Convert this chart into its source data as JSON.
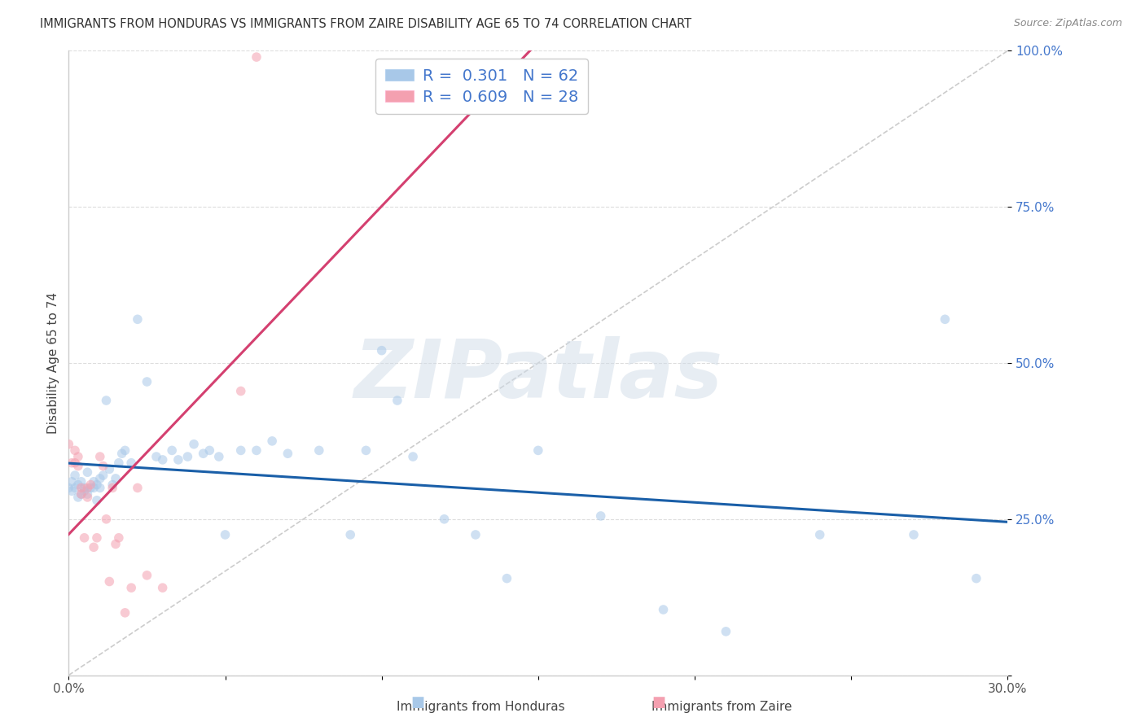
{
  "title": "IMMIGRANTS FROM HONDURAS VS IMMIGRANTS FROM ZAIRE DISABILITY AGE 65 TO 74 CORRELATION CHART",
  "source": "Source: ZipAtlas.com",
  "ylabel": "Disability Age 65 to 74",
  "xlim": [
    0.0,
    0.3
  ],
  "ylim": [
    0.0,
    1.0
  ],
  "xticks": [
    0.0,
    0.05,
    0.1,
    0.15,
    0.2,
    0.25,
    0.3
  ],
  "xtick_labels": [
    "0.0%",
    "",
    "",
    "",
    "",
    "",
    "30.0%"
  ],
  "yticks": [
    0.0,
    0.25,
    0.5,
    0.75,
    1.0
  ],
  "ytick_labels": [
    "",
    "25.0%",
    "50.0%",
    "75.0%",
    "100.0%"
  ],
  "honduras_R": 0.301,
  "honduras_N": 62,
  "zaire_R": 0.609,
  "zaire_N": 28,
  "honduras_color": "#a8c8e8",
  "zaire_color": "#f4a0b0",
  "trendline_honduras_color": "#1a5fa8",
  "trendline_zaire_color": "#d44070",
  "diagonal_color": "#cccccc",
  "background_color": "#ffffff",
  "grid_color": "#dddddd",
  "watermark_text": "ZIPatlas",
  "legend_text_color": "#4477cc",
  "marker_size": 70,
  "alpha": 0.55,
  "honduras_x": [
    0.0,
    0.001,
    0.001,
    0.002,
    0.002,
    0.003,
    0.003,
    0.004,
    0.004,
    0.005,
    0.005,
    0.006,
    0.006,
    0.007,
    0.008,
    0.008,
    0.009,
    0.009,
    0.01,
    0.01,
    0.011,
    0.012,
    0.013,
    0.014,
    0.015,
    0.016,
    0.017,
    0.018,
    0.02,
    0.022,
    0.025,
    0.028,
    0.03,
    0.033,
    0.035,
    0.038,
    0.04,
    0.043,
    0.045,
    0.048,
    0.05,
    0.055,
    0.06,
    0.065,
    0.07,
    0.08,
    0.09,
    0.095,
    0.1,
    0.105,
    0.11,
    0.12,
    0.13,
    0.14,
    0.15,
    0.17,
    0.19,
    0.21,
    0.24,
    0.27,
    0.28,
    0.29
  ],
  "honduras_y": [
    0.3,
    0.295,
    0.31,
    0.3,
    0.32,
    0.285,
    0.305,
    0.31,
    0.29,
    0.3,
    0.295,
    0.29,
    0.325,
    0.3,
    0.31,
    0.3,
    0.28,
    0.305,
    0.3,
    0.315,
    0.32,
    0.44,
    0.33,
    0.305,
    0.315,
    0.34,
    0.355,
    0.36,
    0.34,
    0.57,
    0.47,
    0.35,
    0.345,
    0.36,
    0.345,
    0.35,
    0.37,
    0.355,
    0.36,
    0.35,
    0.225,
    0.36,
    0.36,
    0.375,
    0.355,
    0.36,
    0.225,
    0.36,
    0.52,
    0.44,
    0.35,
    0.25,
    0.225,
    0.155,
    0.36,
    0.255,
    0.105,
    0.07,
    0.225,
    0.225,
    0.57,
    0.155
  ],
  "zaire_x": [
    0.0,
    0.001,
    0.002,
    0.002,
    0.003,
    0.003,
    0.004,
    0.004,
    0.005,
    0.006,
    0.006,
    0.007,
    0.008,
    0.009,
    0.01,
    0.011,
    0.012,
    0.013,
    0.014,
    0.015,
    0.016,
    0.018,
    0.02,
    0.022,
    0.025,
    0.03,
    0.055,
    0.06
  ],
  "zaire_y": [
    0.37,
    0.34,
    0.34,
    0.36,
    0.335,
    0.35,
    0.3,
    0.29,
    0.22,
    0.285,
    0.3,
    0.305,
    0.205,
    0.22,
    0.35,
    0.335,
    0.25,
    0.15,
    0.3,
    0.21,
    0.22,
    0.1,
    0.14,
    0.3,
    0.16,
    0.14,
    0.455,
    0.99
  ]
}
